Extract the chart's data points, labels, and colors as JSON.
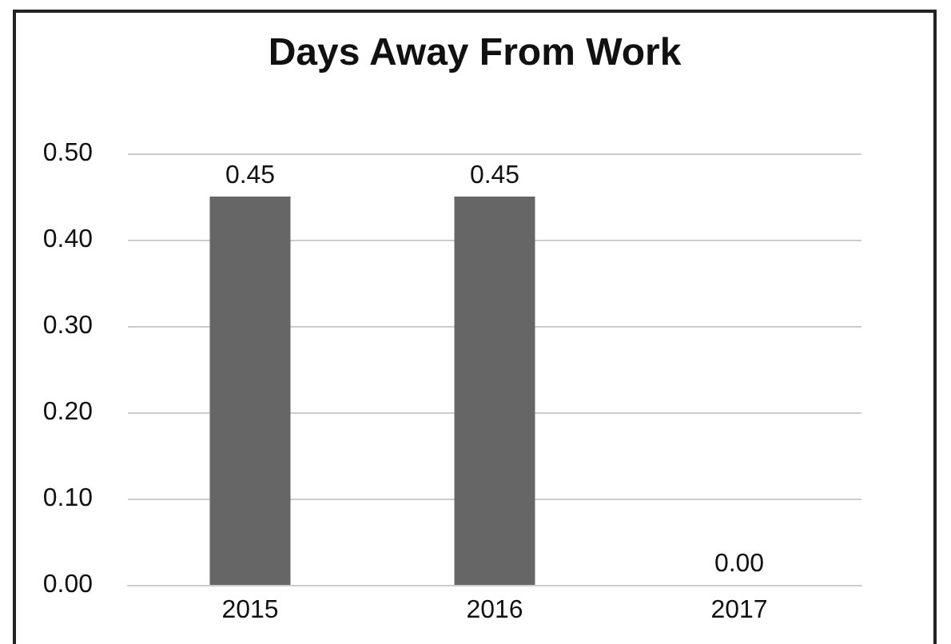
{
  "chart_data": {
    "type": "bar",
    "title": "Days Away From Work",
    "categories": [
      "2015",
      "2016",
      "2017"
    ],
    "values": [
      0.45,
      0.45,
      0.0
    ],
    "value_labels": [
      "0.45",
      "0.45",
      "0.00"
    ],
    "color": "#666666",
    "ylim": [
      0,
      0.5
    ],
    "yticks": [
      {
        "value": 0,
        "label": "0.00"
      },
      {
        "value": 0.1,
        "label": "0.10"
      },
      {
        "value": 0.2,
        "label": "0.20"
      },
      {
        "value": 0.3,
        "label": "0.30"
      },
      {
        "value": 0.4,
        "label": "0.40"
      },
      {
        "value": 0.5,
        "label": "0.50"
      }
    ],
    "grid": "y"
  }
}
